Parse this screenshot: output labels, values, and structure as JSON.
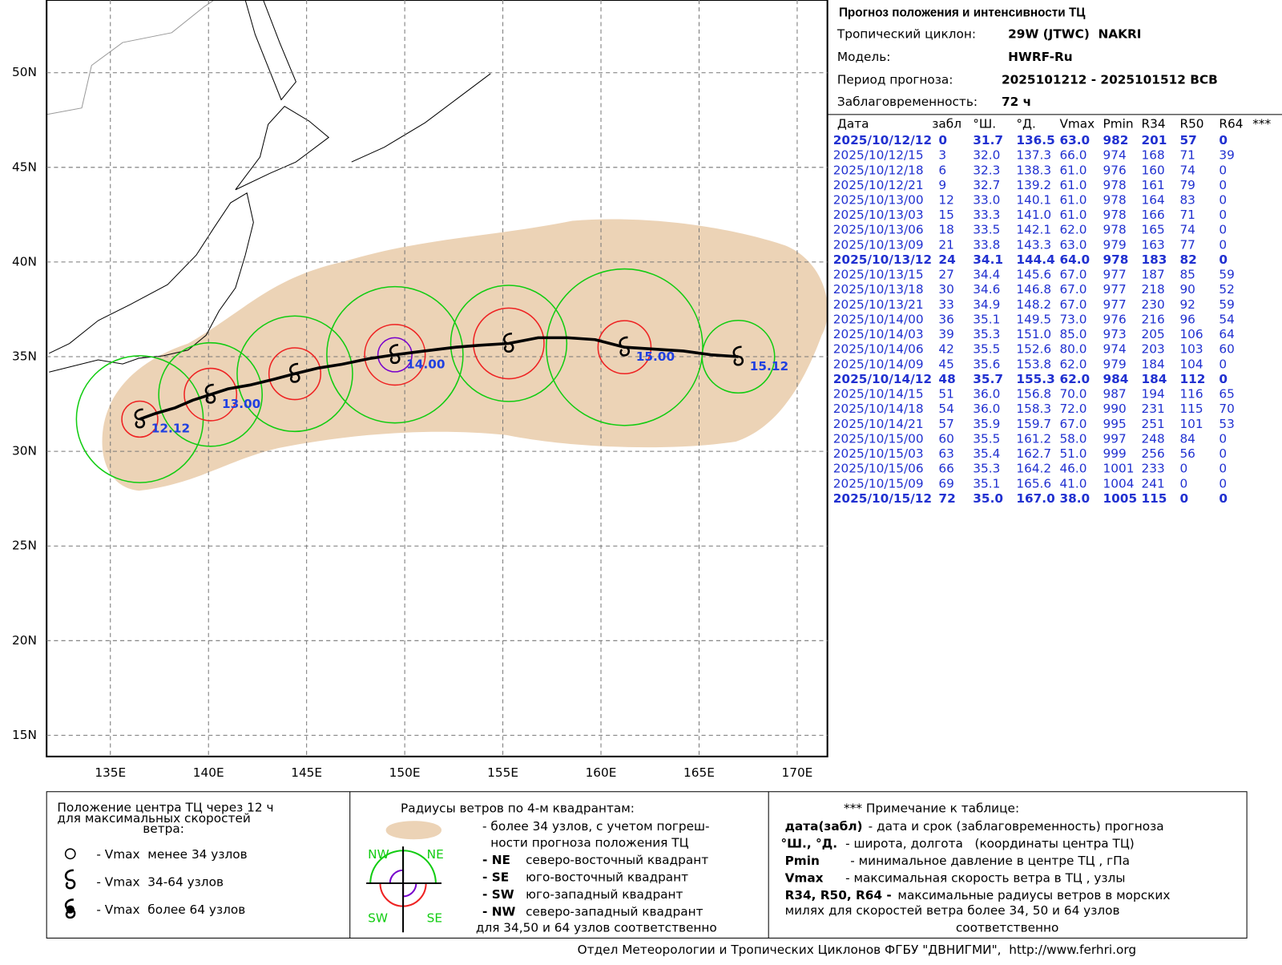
{
  "header": {
    "title": "Прогноз положения и интенсивности ТЦ",
    "info": [
      [
        "Тропический циклон:",
        "29W (JTWC)  NAKRI"
      ],
      [
        "Модель:",
        "HWRF-Ru"
      ],
      [
        "Период прогноза:",
        "2025101212 - 2025101512 ВСВ"
      ],
      [
        "Заблаговременность:",
        "72 ч"
      ]
    ]
  },
  "table": {
    "columns": [
      "Дата",
      "забл",
      "°Ш.",
      "°Д.",
      "Vmax",
      "Pmin",
      "R34",
      "R50",
      "R64",
      "***"
    ],
    "rows": [
      [
        "2025/10/12/12",
        "0",
        "31.7",
        "136.5",
        "63.0",
        "982",
        "201",
        "57",
        "0"
      ],
      [
        "2025/10/12/15",
        "3",
        "32.0",
        "137.3",
        "66.0",
        "974",
        "168",
        "71",
        "39"
      ],
      [
        "2025/10/12/18",
        "6",
        "32.3",
        "138.3",
        "61.0",
        "976",
        "160",
        "74",
        "0"
      ],
      [
        "2025/10/12/21",
        "9",
        "32.7",
        "139.2",
        "61.0",
        "978",
        "161",
        "79",
        "0"
      ],
      [
        "2025/10/13/00",
        "12",
        "33.0",
        "140.1",
        "61.0",
        "978",
        "164",
        "83",
        "0"
      ],
      [
        "2025/10/13/03",
        "15",
        "33.3",
        "141.0",
        "61.0",
        "978",
        "166",
        "71",
        "0"
      ],
      [
        "2025/10/13/06",
        "18",
        "33.5",
        "142.1",
        "62.0",
        "978",
        "165",
        "74",
        "0"
      ],
      [
        "2025/10/13/09",
        "21",
        "33.8",
        "143.3",
        "63.0",
        "979",
        "163",
        "77",
        "0"
      ],
      [
        "2025/10/13/12",
        "24",
        "34.1",
        "144.4",
        "64.0",
        "978",
        "183",
        "82",
        "0"
      ],
      [
        "2025/10/13/15",
        "27",
        "34.4",
        "145.6",
        "67.0",
        "977",
        "187",
        "85",
        "59"
      ],
      [
        "2025/10/13/18",
        "30",
        "34.6",
        "146.8",
        "67.0",
        "977",
        "218",
        "90",
        "52"
      ],
      [
        "2025/10/13/21",
        "33",
        "34.9",
        "148.2",
        "67.0",
        "977",
        "230",
        "92",
        "59"
      ],
      [
        "2025/10/14/00",
        "36",
        "35.1",
        "149.5",
        "73.0",
        "976",
        "216",
        "96",
        "54"
      ],
      [
        "2025/10/14/03",
        "39",
        "35.3",
        "151.0",
        "85.0",
        "973",
        "205",
        "106",
        "64"
      ],
      [
        "2025/10/14/06",
        "42",
        "35.5",
        "152.6",
        "80.0",
        "974",
        "203",
        "103",
        "60"
      ],
      [
        "2025/10/14/09",
        "45",
        "35.6",
        "153.8",
        "62.0",
        "979",
        "184",
        "104",
        "0"
      ],
      [
        "2025/10/14/12",
        "48",
        "35.7",
        "155.3",
        "62.0",
        "984",
        "184",
        "112",
        "0"
      ],
      [
        "2025/10/14/15",
        "51",
        "36.0",
        "156.8",
        "70.0",
        "987",
        "194",
        "116",
        "65"
      ],
      [
        "2025/10/14/18",
        "54",
        "36.0",
        "158.3",
        "72.0",
        "990",
        "231",
        "115",
        "70"
      ],
      [
        "2025/10/14/21",
        "57",
        "35.9",
        "159.7",
        "67.0",
        "995",
        "251",
        "101",
        "53"
      ],
      [
        "2025/10/15/00",
        "60",
        "35.5",
        "161.2",
        "58.0",
        "997",
        "248",
        "84",
        "0"
      ],
      [
        "2025/10/15/03",
        "63",
        "35.4",
        "162.7",
        "51.0",
        "999",
        "256",
        "56",
        "0"
      ],
      [
        "2025/10/15/06",
        "66",
        "35.3",
        "164.2",
        "46.0",
        "1001",
        "233",
        "0",
        "0"
      ],
      [
        "2025/10/15/09",
        "69",
        "35.1",
        "165.6",
        "41.0",
        "1004",
        "241",
        "0",
        "0"
      ],
      [
        "2025/10/15/12",
        "72",
        "35.0",
        "167.0",
        "38.0",
        "1005",
        "115",
        "0",
        "0"
      ]
    ]
  },
  "map": {
    "xlim": [
      131.75,
      171.54
    ],
    "ylim": [
      13.88,
      53.84
    ],
    "xticks": [
      {
        "value": 135,
        "label": "135E"
      },
      {
        "value": 140,
        "label": "140E"
      },
      {
        "value": 145,
        "label": "145E"
      },
      {
        "value": 150,
        "label": "150E"
      },
      {
        "value": 155,
        "label": "155E"
      },
      {
        "value": 160,
        "label": "160E"
      },
      {
        "value": 165,
        "label": "165E"
      },
      {
        "value": 170,
        "label": "170E"
      }
    ],
    "yticks": [
      {
        "value": 15,
        "label": "15N"
      },
      {
        "value": 20,
        "label": "20N"
      },
      {
        "value": 25,
        "label": "25N"
      },
      {
        "value": 30,
        "label": "30N"
      },
      {
        "value": 35,
        "label": "35N"
      },
      {
        "value": 40,
        "label": "40N"
      },
      {
        "value": 45,
        "label": "45N"
      },
      {
        "value": 50,
        "label": "50N"
      }
    ],
    "track_labels": [
      "12.12",
      "13.00",
      "14.00",
      "15.00",
      "15.12"
    ]
  },
  "legend": {
    "center": {
      "title_lines": [
        "Положение центра ТЦ через 12 ч",
        "для максимальных скоростей",
        "ветра:"
      ],
      "items": [
        "- Vmax  менее 34 узлов",
        "- Vmax  34-64 узлов",
        "- Vmax  более 64 узлов"
      ]
    },
    "radii": {
      "title": "Радиусы ветров по 4-м квадрантам:",
      "lines": [
        "- более 34 узлов, с учетом погреш-",
        "ности прогноза положения ТЦ"
      ],
      "quadrants": [
        [
          "- NE",
          "северо-восточный квадрант"
        ],
        [
          "- SE",
          "юго-восточный квадрант"
        ],
        [
          "- SW",
          "юго-западный квадрант"
        ],
        [
          "- NW",
          "северо-западный квадрант"
        ]
      ],
      "compass": [
        "NW",
        "NE",
        "SW",
        "SE"
      ],
      "last": "для 34,50 и 64 узлов соответственно"
    },
    "notes": {
      "title": "*** Примечание к таблице:",
      "items": [
        [
          "дата(забл)",
          "- дата и срок (заблаговременность) прогноза"
        ],
        [
          "°Ш., °Д.",
          "- широта, долгота   (координаты центра ТЦ)"
        ],
        [
          "Pmin",
          "- минимальное давление в центре ТЦ , гПа"
        ],
        [
          "Vmax",
          "- максимальная скорость ветра в ТЦ , узлы"
        ],
        [
          "R34, R50, R64 -",
          "максимальные радиусы ветров в морских"
        ]
      ],
      "tail": [
        "милях для скоростей ветра более 34, 50 и 64 узлов",
        "соответственно"
      ]
    }
  },
  "footer": "Отдел Метеорологии и Тропических Циклонов ФГБУ \"ДВНИГМИ\",  http://www.ferhri.org"
}
